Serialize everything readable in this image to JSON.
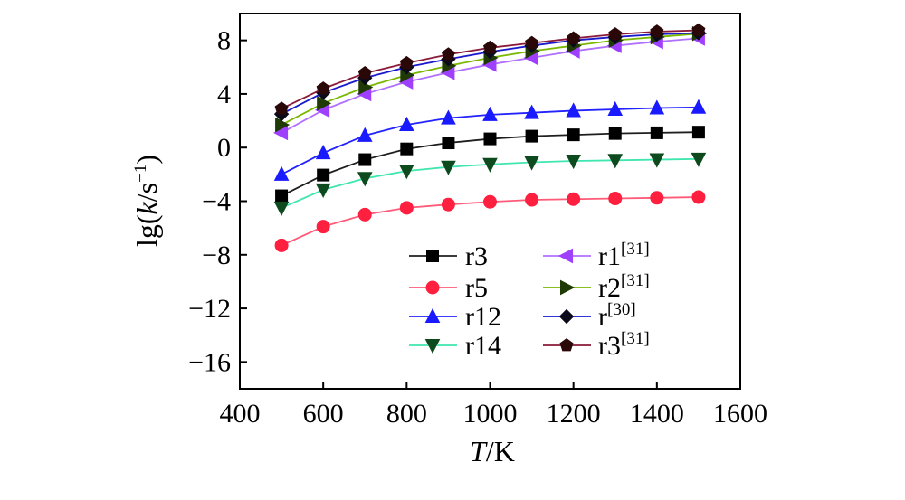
{
  "chart_data": {
    "type": "line",
    "title": "",
    "xlabel": {
      "italic": "T",
      "rest": "/K"
    },
    "ylabel": {
      "pre": "lg(",
      "italic": "k",
      "rest": "/s",
      "sup": "−1",
      "post": ")"
    },
    "xlim": [
      400,
      1600
    ],
    "ylim": [
      -18,
      10
    ],
    "xticks": [
      400,
      600,
      800,
      1000,
      1200,
      1400,
      1600
    ],
    "yticks": [
      8,
      4,
      0,
      -4,
      -8,
      -12,
      -16
    ],
    "xtick_labels": [
      "400",
      "600",
      "800",
      "1000",
      "1200",
      "1400",
      "1600"
    ],
    "ytick_labels": [
      "8",
      "4",
      "0",
      "−4",
      "−8",
      "−12",
      "−16"
    ],
    "grid": false,
    "legend_location": "lower-center",
    "x": [
      500,
      600,
      700,
      800,
      900,
      1000,
      1100,
      1200,
      1300,
      1400,
      1500
    ],
    "series": [
      {
        "name": "r3",
        "sup": "",
        "color": "#1e1e1e",
        "marker": "square",
        "marker_color": "#000000",
        "values": [
          -3.6,
          -2.05,
          -0.9,
          -0.1,
          0.35,
          0.65,
          0.85,
          0.95,
          1.05,
          1.1,
          1.15
        ]
      },
      {
        "name": "r5",
        "sup": "",
        "color": "#ff5a78",
        "marker": "circle",
        "marker_color": "#ff1f3f",
        "values": [
          -7.3,
          -5.9,
          -5.0,
          -4.5,
          -4.25,
          -4.05,
          -3.9,
          -3.85,
          -3.8,
          -3.75,
          -3.7
        ]
      },
      {
        "name": "r12",
        "sup": "",
        "color": "#2222ff",
        "marker": "triangle-up",
        "marker_color": "#1a1aff",
        "values": [
          -2.0,
          -0.4,
          0.9,
          1.7,
          2.2,
          2.45,
          2.6,
          2.75,
          2.85,
          2.95,
          3.0
        ]
      },
      {
        "name": "r14",
        "sup": "",
        "color": "#40e6b0",
        "marker": "triangle-down",
        "marker_color": "#0d4a1e",
        "values": [
          -4.5,
          -3.15,
          -2.3,
          -1.75,
          -1.45,
          -1.25,
          -1.1,
          -1.0,
          -0.95,
          -0.9,
          -0.85
        ]
      },
      {
        "name": "r1",
        "sup": "[31]",
        "color": "#b070ff",
        "marker": "triangle-left",
        "marker_color": "#a040ff",
        "values": [
          1.1,
          2.8,
          4.0,
          4.9,
          5.6,
          6.2,
          6.7,
          7.2,
          7.6,
          7.9,
          8.15
        ]
      },
      {
        "name": "r2",
        "sup": "[31]",
        "color": "#7ab800",
        "marker": "triangle-right",
        "marker_color": "#1f3a05",
        "values": [
          1.7,
          3.3,
          4.5,
          5.4,
          6.1,
          6.7,
          7.2,
          7.6,
          8.0,
          8.25,
          8.5
        ]
      },
      {
        "name": "r",
        "sup": "[30]",
        "color": "#1a1acc",
        "marker": "diamond",
        "marker_color": "#0a0a1a",
        "values": [
          2.5,
          4.1,
          5.2,
          6.0,
          6.6,
          7.15,
          7.6,
          8.0,
          8.25,
          8.45,
          8.55
        ]
      },
      {
        "name": "r3",
        "sup": "[31]",
        "color": "#8a1a3a",
        "marker": "pentagon",
        "marker_color": "#2a0808",
        "values": [
          2.9,
          4.4,
          5.55,
          6.3,
          6.95,
          7.45,
          7.8,
          8.15,
          8.45,
          8.65,
          8.75
        ]
      }
    ]
  }
}
